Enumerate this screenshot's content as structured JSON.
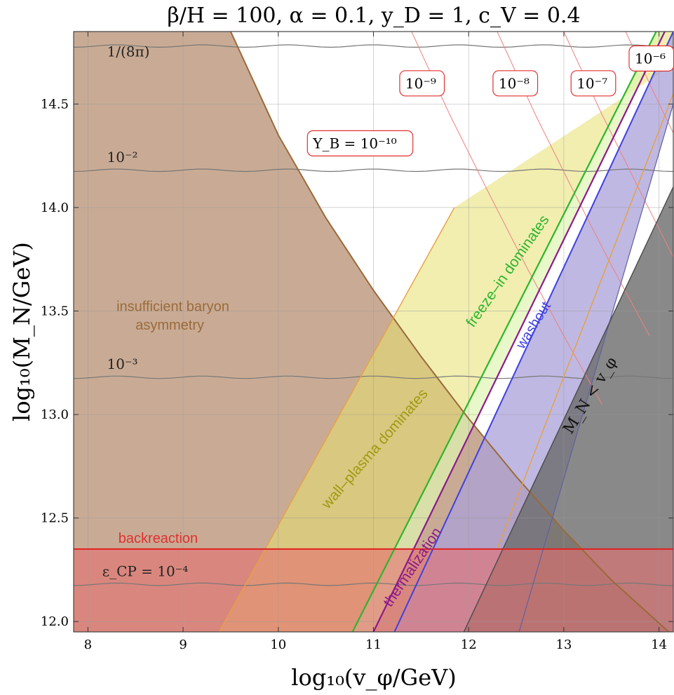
{
  "chart_data": {
    "type": "region-plot",
    "title": "β/H = 100, α = 0.1, y_D = 1, c_V = 0.4",
    "xlabel": "log₁₀(v_φ/GeV)",
    "ylabel": "log₁₀(M_N/GeV)",
    "xlim": [
      7.85,
      14.15
    ],
    "ylim": [
      11.95,
      14.85
    ],
    "grid": true,
    "xticks": [
      "8",
      "9",
      "10",
      "11",
      "12",
      "13",
      "14"
    ],
    "yticks": [
      "12.0",
      "12.5",
      "13.0",
      "13.5",
      "14.0",
      "14.5"
    ],
    "regions": {
      "insufficient_baryon_asymmetry": {
        "label_lines": [
          "insufficient baryon",
          "asymmetry"
        ],
        "color": "#c9ab95",
        "boundary": [
          [
            9.5,
            14.85
          ],
          [
            10.0,
            14.35
          ],
          [
            10.5,
            13.95
          ],
          [
            11.0,
            13.6
          ],
          [
            11.5,
            13.28
          ],
          [
            12.0,
            12.98
          ],
          [
            12.5,
            12.7
          ],
          [
            13.0,
            12.44
          ],
          [
            13.5,
            12.2
          ],
          [
            14.15,
            11.93
          ]
        ]
      },
      "backreaction": {
        "label": "backreaction",
        "color": "#e57070",
        "y_max": 12.35
      },
      "wall_plasma_dominates": {
        "label": "wall–plasma dominates",
        "color": "#e6e070",
        "left_edge": [
          [
            9.38,
            11.95
          ],
          [
            11.85,
            14.0
          ]
        ],
        "right_edge": [
          [
            10.78,
            11.95
          ],
          [
            13.97,
            14.85
          ]
        ]
      },
      "freeze_in_dominates": {
        "label": "freeze–in dominates",
        "color": "#dff5b0",
        "left_edge": [
          [
            10.78,
            11.95
          ],
          [
            13.97,
            14.85
          ]
        ],
        "right_edge": [
          [
            11.0,
            11.95
          ],
          [
            14.06,
            14.85
          ]
        ]
      },
      "washout": {
        "label": "washout",
        "color": "#a9a0d8",
        "upper_edge": [
          [
            11.22,
            11.95
          ],
          [
            14.15,
            14.85
          ]
        ],
        "lower_edge": [
          [
            12.53,
            11.95
          ],
          [
            14.15,
            14.5
          ]
        ]
      },
      "thermalization": {
        "label": "thermalization",
        "color": "#8b1a8b"
      },
      "M_N_less_than_v_phi": {
        "label": "M_N < v_φ",
        "color": "#6b6b6b",
        "edge": [
          [
            11.95,
            11.95
          ],
          [
            14.15,
            14.1
          ]
        ]
      }
    },
    "lines": {
      "freeze_in_line": {
        "color": "#2db52d",
        "points": [
          [
            10.78,
            11.95
          ],
          [
            13.97,
            14.85
          ]
        ]
      },
      "thermalization_line": {
        "color": "#8b1a8b",
        "points": [
          [
            11.0,
            11.95
          ],
          [
            14.06,
            14.85
          ]
        ]
      },
      "washout_line": {
        "color": "#4040e0",
        "points": [
          [
            11.22,
            11.95
          ],
          [
            14.15,
            14.85
          ]
        ]
      },
      "backreaction_line": {
        "color": "#e02020",
        "y": 12.35
      }
    },
    "epsilon_CP_contours": [
      {
        "label": "1/(8π)",
        "y": 14.78,
        "label_x": 8.2,
        "label_y": 14.73
      },
      {
        "label": "10⁻²",
        "y": 14.18,
        "label_x": 8.2,
        "label_y": 14.22
      },
      {
        "label": "10⁻³",
        "y": 13.18,
        "label_x": 8.2,
        "label_y": 13.22
      },
      {
        "label": "ε_CP = 10⁻⁴",
        "y": 12.18,
        "label_x": 8.15,
        "label_y": 12.22
      }
    ],
    "Y_B_contours": [
      {
        "label": "Y_B = 10⁻¹⁰",
        "points": [
          [
            9.5,
            14.85
          ],
          [
            10.0,
            14.35
          ],
          [
            10.5,
            13.95
          ],
          [
            11.0,
            13.6
          ],
          [
            11.5,
            13.28
          ],
          [
            12.0,
            12.98
          ],
          [
            12.5,
            12.7
          ],
          [
            13.0,
            12.44
          ],
          [
            13.5,
            12.2
          ],
          [
            14.15,
            11.93
          ]
        ],
        "label_x": 10.35,
        "label_y": 14.31
      },
      {
        "label": "10⁻⁹",
        "points": [
          [
            11.4,
            14.85
          ],
          [
            11.8,
            14.45
          ],
          [
            12.2,
            14.08
          ],
          [
            12.6,
            13.72
          ],
          [
            13.0,
            13.38
          ],
          [
            13.4,
            13.05
          ]
        ],
        "label_x": 11.32,
        "label_y": 14.6
      },
      {
        "label": "10⁻⁸",
        "points": [
          [
            12.3,
            14.85
          ],
          [
            12.7,
            14.45
          ],
          [
            13.1,
            14.08
          ],
          [
            13.5,
            13.72
          ],
          [
            13.9,
            13.38
          ]
        ],
        "label_x": 12.3,
        "label_y": 14.6
      },
      {
        "label": "10⁻⁷",
        "points": [
          [
            13.0,
            14.85
          ],
          [
            13.4,
            14.45
          ],
          [
            13.8,
            14.08
          ],
          [
            14.15,
            13.76
          ]
        ],
        "label_x": 13.12,
        "label_y": 14.6
      },
      {
        "label": "10⁻⁶",
        "points": [
          [
            13.65,
            14.85
          ],
          [
            13.95,
            14.55
          ],
          [
            14.15,
            14.36
          ]
        ],
        "label_x": 13.73,
        "label_y": 14.72
      }
    ]
  }
}
